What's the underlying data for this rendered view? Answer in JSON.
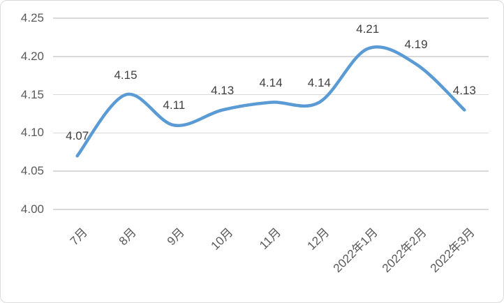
{
  "chart_data": {
    "type": "line",
    "smooth": true,
    "title": "",
    "xlabel": "",
    "ylabel": "",
    "categories": [
      "7月",
      "8月",
      "9月",
      "10月",
      "11月",
      "12月",
      "2022年1月",
      "2022年2月",
      "2022年3月"
    ],
    "values": [
      4.07,
      4.15,
      4.11,
      4.13,
      4.14,
      4.14,
      4.21,
      4.19,
      4.13
    ],
    "data_labels": [
      "4.07",
      "4.15",
      "4.11",
      "4.13",
      "4.14",
      "4.14",
      "4.21",
      "4.19",
      "4.13"
    ],
    "ylim": [
      4.0,
      4.25
    ],
    "ytick_step": 0.05,
    "yticks": [
      "4.25",
      "4.20",
      "4.15",
      "4.10",
      "4.05",
      "4.00"
    ],
    "grid": true,
    "legend_position": "none",
    "colors": {
      "line": "#5B9BD5",
      "gridline": "#d9d9d9",
      "axis_text": "#595959",
      "data_label_text": "#404040",
      "frame_border": "#d9d9d9",
      "background": "#ffffff"
    }
  }
}
